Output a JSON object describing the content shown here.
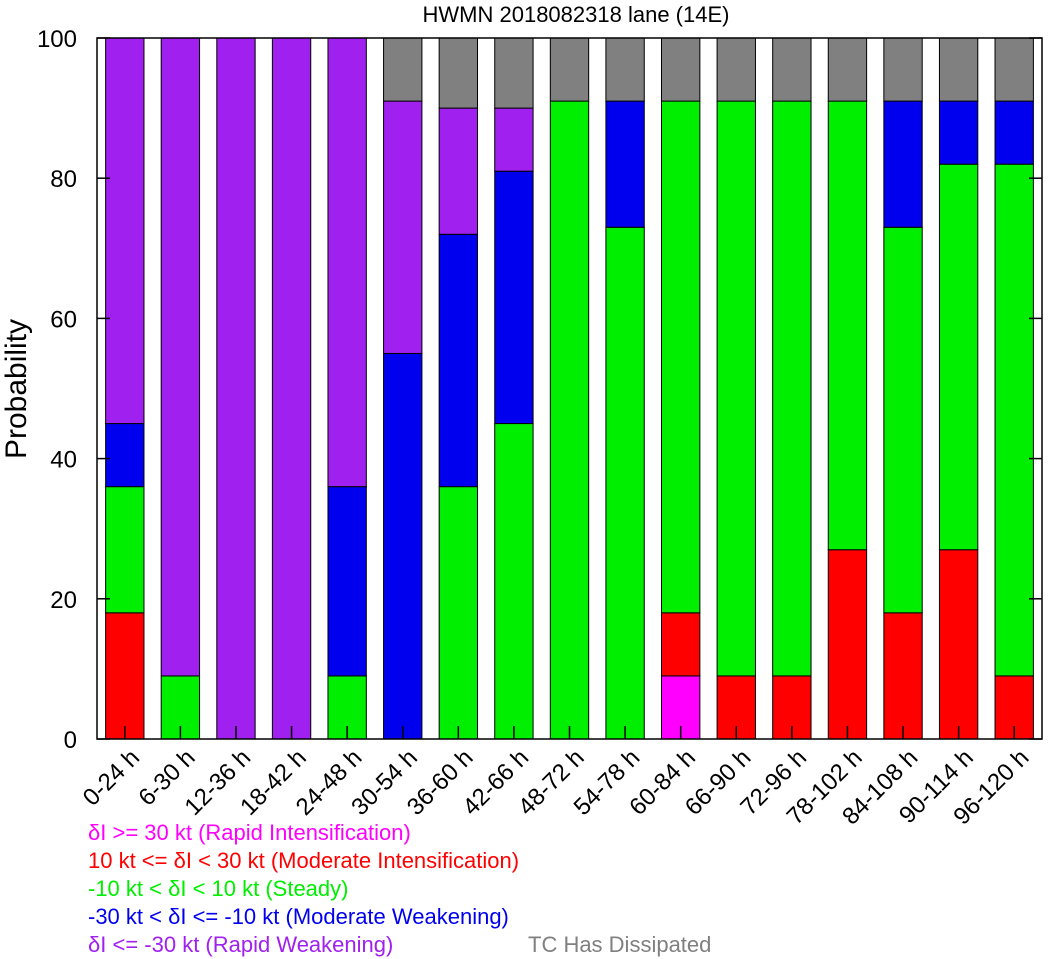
{
  "chart_data": {
    "type": "bar",
    "stacked": true,
    "title": "HWMN 2018082318 lane (14E)",
    "xlabel": "",
    "ylabel": "Probability",
    "ylim": [
      0,
      100
    ],
    "yticks": [
      0,
      20,
      40,
      60,
      80,
      100
    ],
    "grid": false,
    "legend_position": "bottom-left",
    "categories": [
      "0-24 h",
      "6-30 h",
      "12-36 h",
      "18-42 h",
      "24-48 h",
      "30-54 h",
      "36-60 h",
      "42-66 h",
      "48-72 h",
      "54-78 h",
      "60-84 h",
      "66-90 h",
      "72-96 h",
      "78-102 h",
      "84-108 h",
      "90-114 h",
      "96-120 h"
    ],
    "series": [
      {
        "name": "δI >= 30 kt (Rapid Intensification)",
        "color": "#ff00ff",
        "values": [
          0,
          0,
          0,
          0,
          0,
          0,
          0,
          0,
          0,
          0,
          9,
          0,
          0,
          0,
          0,
          0,
          0
        ]
      },
      {
        "name": "10 kt <= δI < 30 kt (Moderate Intensification)",
        "color": "#ff0000",
        "values": [
          18,
          0,
          0,
          0,
          0,
          0,
          0,
          0,
          0,
          0,
          9,
          9,
          9,
          27,
          18,
          27,
          9
        ]
      },
      {
        "name": "-10 kt < δI < 10 kt (Steady)",
        "color": "#00ee00",
        "values": [
          18,
          9,
          0,
          0,
          9,
          0,
          36,
          45,
          91,
          73,
          73,
          82,
          82,
          64,
          55,
          55,
          73
        ]
      },
      {
        "name": "-30 kt < δI <= -10 kt (Moderate Weakening)",
        "color": "#0000ee",
        "values": [
          9,
          0,
          0,
          0,
          27,
          55,
          36,
          36,
          0,
          18,
          0,
          0,
          0,
          0,
          18,
          9,
          9
        ]
      },
      {
        "name": "δI <= -30 kt (Rapid Weakening)",
        "color": "#a020f0",
        "values": [
          55,
          91,
          100,
          100,
          64,
          36,
          18,
          9,
          0,
          0,
          0,
          0,
          0,
          0,
          0,
          0,
          0
        ]
      },
      {
        "name": "TC Has Dissipated",
        "color": "#808080",
        "values": [
          0,
          0,
          0,
          0,
          0,
          9,
          10,
          10,
          9,
          9,
          9,
          9,
          9,
          9,
          9,
          9,
          9
        ]
      }
    ]
  },
  "legend": [
    {
      "label": "δI >= 30 kt (Rapid Intensification)",
      "color": "#ff00ff"
    },
    {
      "label": "10 kt <= δI < 30 kt (Moderate Intensification)",
      "color": "#ff0000"
    },
    {
      "label": "-10 kt < δI < 10 kt (Steady)",
      "color": "#00ee00"
    },
    {
      "label": "-30 kt < δI <= -10 kt (Moderate Weakening)",
      "color": "#0000ee"
    },
    {
      "label": "δI <= -30 kt (Rapid Weakening)",
      "color": "#a020f0"
    },
    {
      "label": "TC Has Dissipated",
      "color": "#808080"
    }
  ]
}
